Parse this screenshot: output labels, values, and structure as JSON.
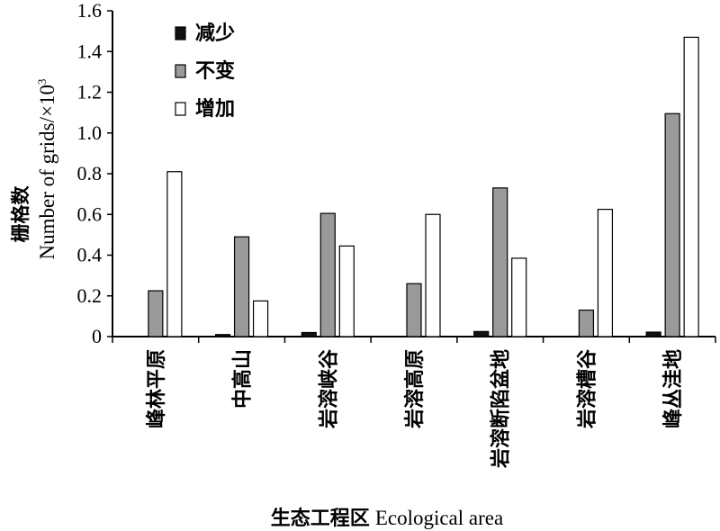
{
  "chart_data": {
    "type": "bar",
    "categories": [
      "峰林平原",
      "中高山",
      "岩溶峡谷",
      "岩溶高原",
      "岩溶断陷盆地",
      "岩溶槽谷",
      "峰丛洼地"
    ],
    "series": [
      {
        "name": "减少",
        "color": "#111111",
        "values": [
          0.0,
          0.01,
          0.02,
          0.0,
          0.025,
          0.0,
          0.022
        ]
      },
      {
        "name": "不变",
        "color": "#9a9a9a",
        "values": [
          0.225,
          0.49,
          0.605,
          0.26,
          0.73,
          0.13,
          1.095
        ]
      },
      {
        "name": "增加",
        "color": "#ffffff",
        "values": [
          0.81,
          0.175,
          0.445,
          0.6,
          0.385,
          0.625,
          1.47
        ]
      }
    ],
    "ylim": [
      0,
      1.6
    ],
    "yticks": [
      "0",
      "0.2",
      "0.4",
      "0.6",
      "0.8",
      "1.0",
      "1.2",
      "1.4",
      "1.6"
    ],
    "ylabel_zh": "栅格数",
    "ylabel_en": "Number of grids/×10",
    "ylabel_sup": "3",
    "xlabel_zh": "生态工程区",
    "xlabel_en": "Ecological area",
    "legend_position": "top-left",
    "grid": false
  }
}
